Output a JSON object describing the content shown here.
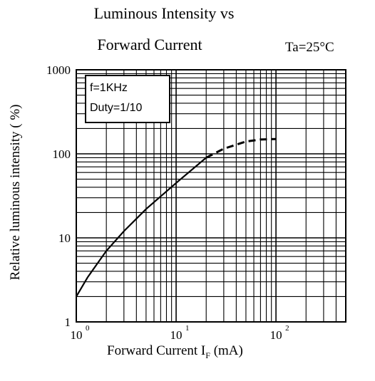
{
  "chart_data": {
    "type": "line",
    "title_line1": "Luminous Intensity vs",
    "title_line2": "Forward Current",
    "condition": "Ta=25°C",
    "xlabel": "Forward Current   I",
    "xlabel_sub": "F",
    "xlabel_unit": "(mA)",
    "ylabel": "Relative luminous intensity ( %)",
    "xscale": "log",
    "yscale": "log",
    "xlim": [
      1,
      500
    ],
    "ylim": [
      1,
      1000
    ],
    "x_tick_labels": [
      {
        "value": 1,
        "base": "10",
        "exp": "0"
      },
      {
        "value": 10,
        "base": "10",
        "exp": "1"
      },
      {
        "value": 100,
        "base": "10",
        "exp": "2"
      }
    ],
    "y_tick_labels": [
      {
        "value": 1,
        "label": "1"
      },
      {
        "value": 10,
        "label": "10"
      },
      {
        "value": 100,
        "label": "100"
      },
      {
        "value": 1000,
        "label": "1000"
      }
    ],
    "grid": true,
    "legend_box": [
      "f=1KHz",
      "Duty=1/10"
    ],
    "series": [
      {
        "solid": {
          "x": [
            1,
            1.3,
            2,
            3,
            5,
            10,
            20
          ],
          "y": [
            2,
            3.4,
            7,
            12,
            22,
            45,
            90
          ]
        },
        "dashed": {
          "x": [
            20,
            30,
            50,
            70,
            100
          ],
          "y": [
            90,
            115,
            140,
            148,
            150
          ]
        }
      }
    ]
  }
}
